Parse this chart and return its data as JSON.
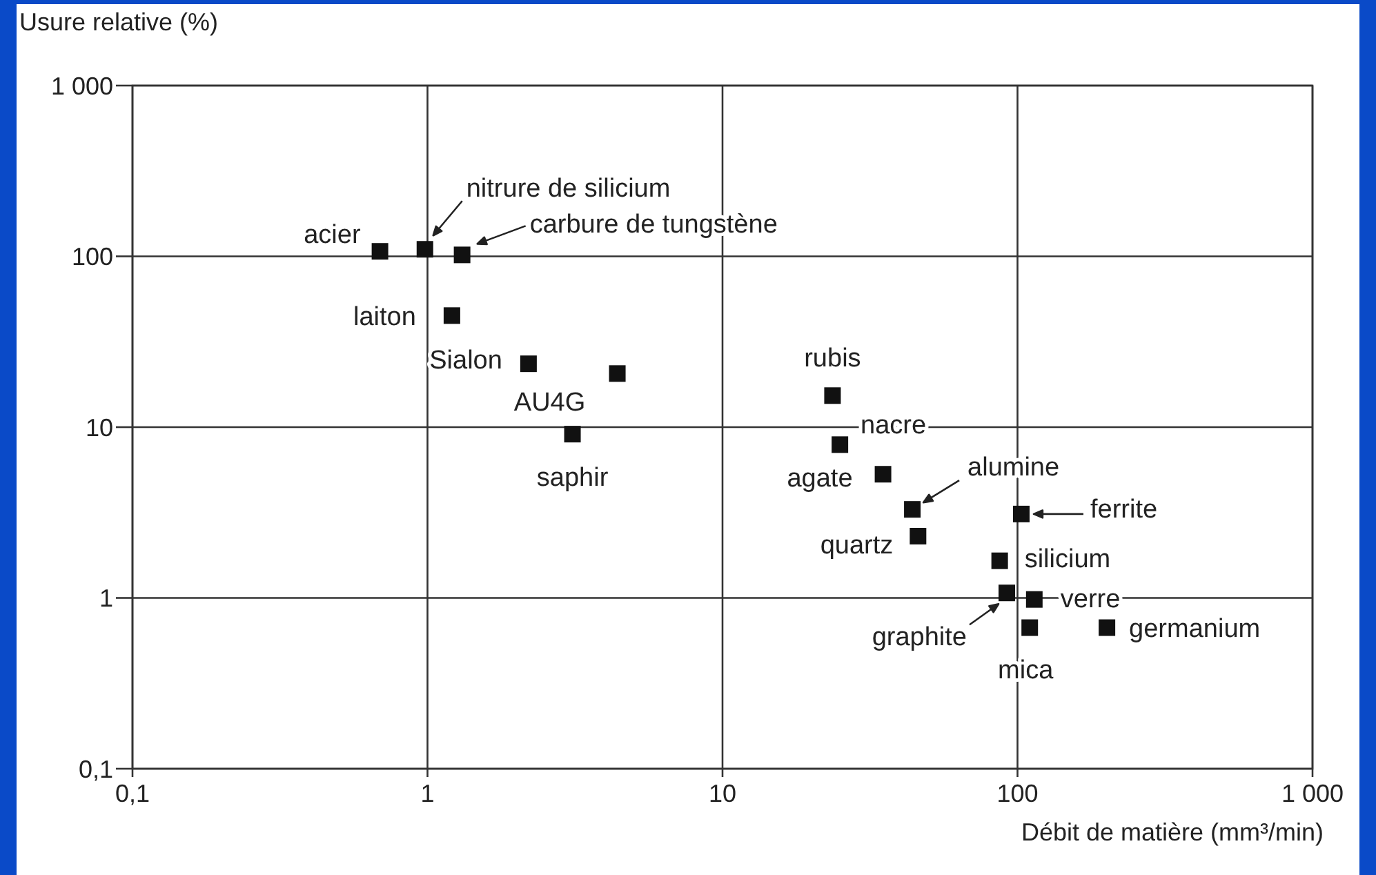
{
  "chart_data": {
    "type": "scatter",
    "ylabel": "Usure relative (%)",
    "xlabel": "Débit de matière (mm³/min)",
    "log": "xy",
    "grid": true,
    "marker": "square",
    "xlim": [
      0.1,
      1000
    ],
    "ylim": [
      0.1,
      1000
    ],
    "xticks": [
      {
        "value": 0.1,
        "label": "0,1"
      },
      1,
      10,
      100,
      {
        "value": 1000,
        "label": "1 000"
      }
    ],
    "yticks": [
      {
        "value": 0.1,
        "label": "0,1"
      },
      1,
      10,
      100,
      {
        "value": 1000,
        "label": "1 000"
      }
    ],
    "series": [
      {
        "color": "#111111",
        "x": [
          0.69,
          0.98,
          1.31,
          1.21,
          2.2,
          4.4,
          3.1,
          23.6,
          25,
          35,
          44,
          46,
          103,
          87,
          92,
          114,
          110,
          201
        ],
        "values": [
          107,
          110,
          102,
          45,
          23.5,
          20.6,
          9.1,
          15.3,
          7.9,
          5.3,
          3.3,
          2.3,
          3.1,
          1.65,
          1.07,
          0.98,
          0.67,
          0.67
        ]
      }
    ],
    "annotations": [
      {
        "text": "acier",
        "x": 0.69,
        "y": 107
      },
      {
        "text": "nitrure de silicium",
        "x": 0.98,
        "y": 110
      },
      {
        "text": "carbure de tungstène",
        "x": 1.31,
        "y": 102
      },
      {
        "text": "laiton",
        "x": 1.21,
        "y": 45
      },
      {
        "text": "Sialon",
        "x": 2.2,
        "y": 23.5
      },
      {
        "text": "AU4G",
        "x": 4.4,
        "y": 20.6
      },
      {
        "text": "saphir",
        "x": 3.1,
        "y": 9.1
      },
      {
        "text": "rubis",
        "x": 23.6,
        "y": 15.3
      },
      {
        "text": "nacre",
        "x": 25,
        "y": 7.9
      },
      {
        "text": "agate",
        "x": 35,
        "y": 5.3
      },
      {
        "text": "alumine",
        "x": 44,
        "y": 3.3
      },
      {
        "text": "quartz",
        "x": 46,
        "y": 2.3
      },
      {
        "text": "ferrite",
        "x": 103,
        "y": 3.1
      },
      {
        "text": "silicium",
        "x": 87,
        "y": 1.65
      },
      {
        "text": "graphite",
        "x": 92,
        "y": 1.07
      },
      {
        "text": "verre",
        "x": 114,
        "y": 0.98
      },
      {
        "text": "mica",
        "x": 110,
        "y": 0.67
      },
      {
        "text": "germanium",
        "x": 201,
        "y": 0.67
      }
    ]
  }
}
